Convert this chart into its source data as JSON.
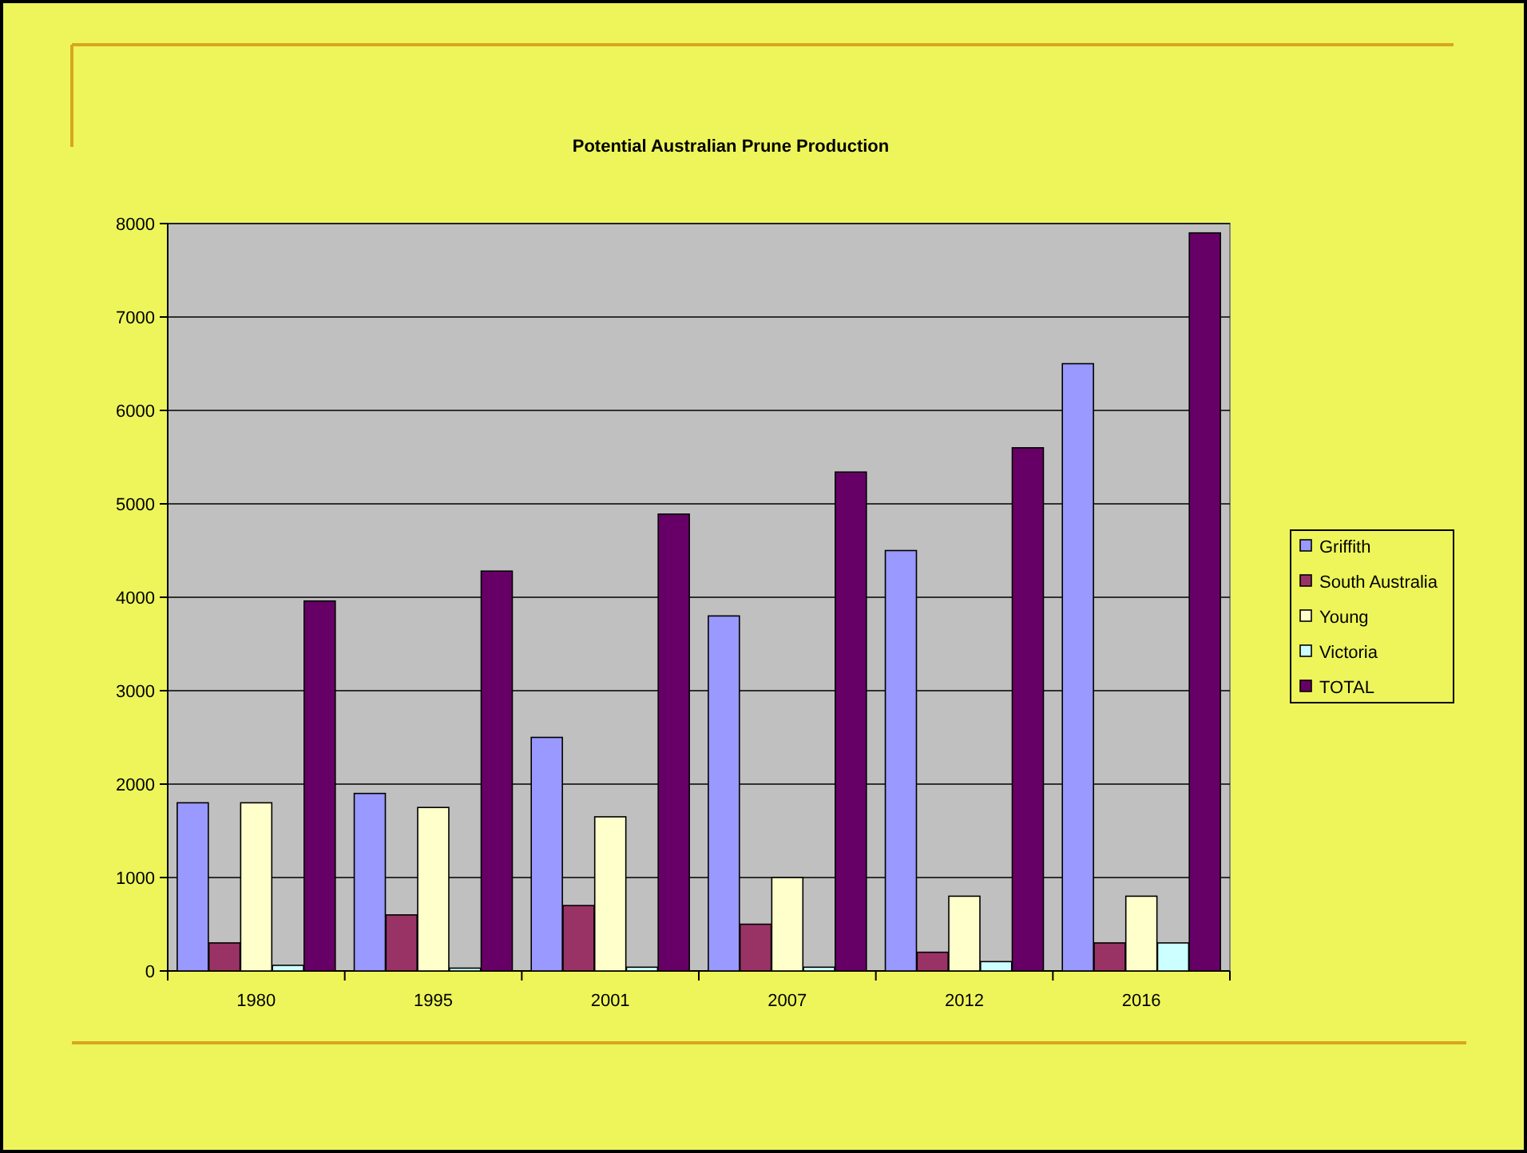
{
  "chart_data": {
    "type": "bar",
    "title": "Potential Australian Prune Production",
    "categories": [
      "1980",
      "1995",
      "2001",
      "2007",
      "2012",
      "2016"
    ],
    "series": [
      {
        "name": "Griffith",
        "color": "#9999ff",
        "values": [
          1800,
          1900,
          2500,
          3800,
          4500,
          6500
        ]
      },
      {
        "name": "South Australia",
        "color": "#993366",
        "values": [
          300,
          600,
          700,
          500,
          200,
          300
        ]
      },
      {
        "name": "Young",
        "color": "#ffffcc",
        "values": [
          1800,
          1750,
          1650,
          1000,
          800,
          800
        ]
      },
      {
        "name": "Victoria",
        "color": "#ccffff",
        "values": [
          60,
          30,
          40,
          40,
          100,
          300
        ]
      },
      {
        "name": "TOTAL",
        "color": "#660066",
        "values": [
          3960,
          4280,
          4890,
          5340,
          5600,
          7900
        ]
      }
    ],
    "ylim": [
      0,
      8000
    ],
    "yticks": [
      0,
      1000,
      2000,
      3000,
      4000,
      5000,
      6000,
      7000,
      8000
    ],
    "grid": "y",
    "legend": "right"
  }
}
